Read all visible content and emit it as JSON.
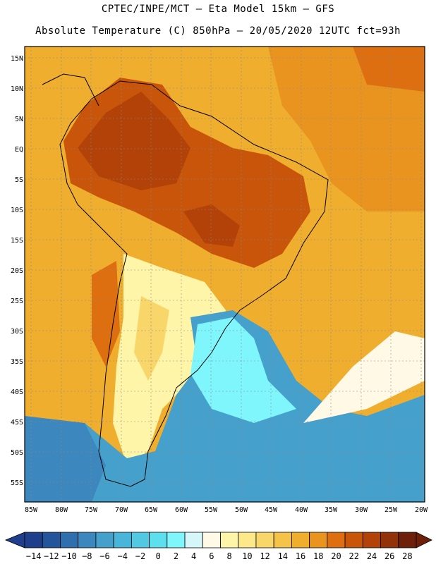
{
  "title_line1": "CPTEC/INPE/MCT –  Eta Model 15km – GFS",
  "title_line2": "Absolute Temperature (C) 850hPa – 20/05/2020 12UTC fct=93h",
  "lat_labels": [
    "15N",
    "10N",
    "5N",
    "EQ",
    "5S",
    "10S",
    "15S",
    "20S",
    "25S",
    "30S",
    "35S",
    "40S",
    "45S",
    "50S",
    "55S"
  ],
  "lon_labels": [
    "85W",
    "80W",
    "75W",
    "70W",
    "65W",
    "60W",
    "55W",
    "50W",
    "45W",
    "40W",
    "35W",
    "30W",
    "25W",
    "20W"
  ],
  "colorbar": {
    "labels": [
      "-14",
      "-12",
      "-10",
      "-8",
      "-6",
      "-4",
      "-2",
      "0",
      "2",
      "4",
      "6",
      "8",
      "10",
      "12",
      "14",
      "16",
      "18",
      "20",
      "22",
      "24",
      "26",
      "28"
    ],
    "colors": [
      "#1f3f8c",
      "#24559c",
      "#2f6fae",
      "#3b87be",
      "#46a0cc",
      "#49b5d8",
      "#52c8e2",
      "#5edfee",
      "#7ff6fb",
      "#d6f7fa",
      "#fff9e6",
      "#fff5a8",
      "#fde88a",
      "#f9d66a",
      "#f5c24a",
      "#f0ae2e",
      "#ea9420",
      "#de6f10",
      "#c9550b",
      "#b24207",
      "#923209",
      "#6e1f0a"
    ]
  },
  "colors": {
    "ocean_warm": "#f0ae2e",
    "land_hot": "#c9550b",
    "land_very_hot": "#b24207",
    "cool_south": "#fff5a8",
    "cold_ocean": "#46a0cc",
    "very_cold": "#7ff6fb"
  }
}
